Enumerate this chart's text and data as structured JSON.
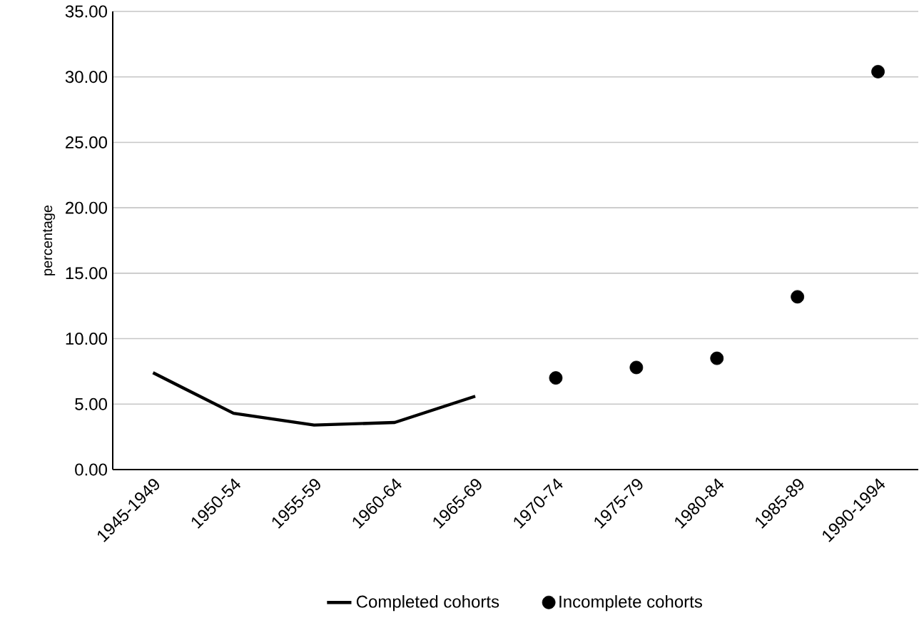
{
  "chart_data": {
    "type": "line",
    "ylabel": "percentage",
    "categories": [
      "1945-1949",
      "1950-54",
      "1955-59",
      "1960-64",
      "1965-69",
      "1970-74",
      "1975-79",
      "1980-84",
      "1985-89",
      "1990-1994"
    ],
    "ylim": [
      0,
      35
    ],
    "yticks": [
      {
        "value": 0,
        "label": "0.00"
      },
      {
        "value": 5,
        "label": "5.00"
      },
      {
        "value": 10,
        "label": "10.00"
      },
      {
        "value": 15,
        "label": "15.00"
      },
      {
        "value": 20,
        "label": "20.00"
      },
      {
        "value": 25,
        "label": "25.00"
      },
      {
        "value": 30,
        "label": "30.00"
      },
      {
        "value": 35,
        "label": "35.00"
      }
    ],
    "grid": "y",
    "legend": "bottom",
    "series": [
      {
        "name": "Completed cohorts",
        "color": "#000000",
        "marker": "none",
        "values": [
          7.4,
          4.3,
          3.4,
          3.6,
          5.6,
          null,
          null,
          null,
          null,
          null
        ]
      },
      {
        "name": "Incomplete cohorts",
        "type": "scatter",
        "color": "#000000",
        "marker": "circle",
        "values": [
          null,
          null,
          null,
          null,
          null,
          7.0,
          7.8,
          8.5,
          13.2,
          30.4
        ]
      }
    ]
  }
}
